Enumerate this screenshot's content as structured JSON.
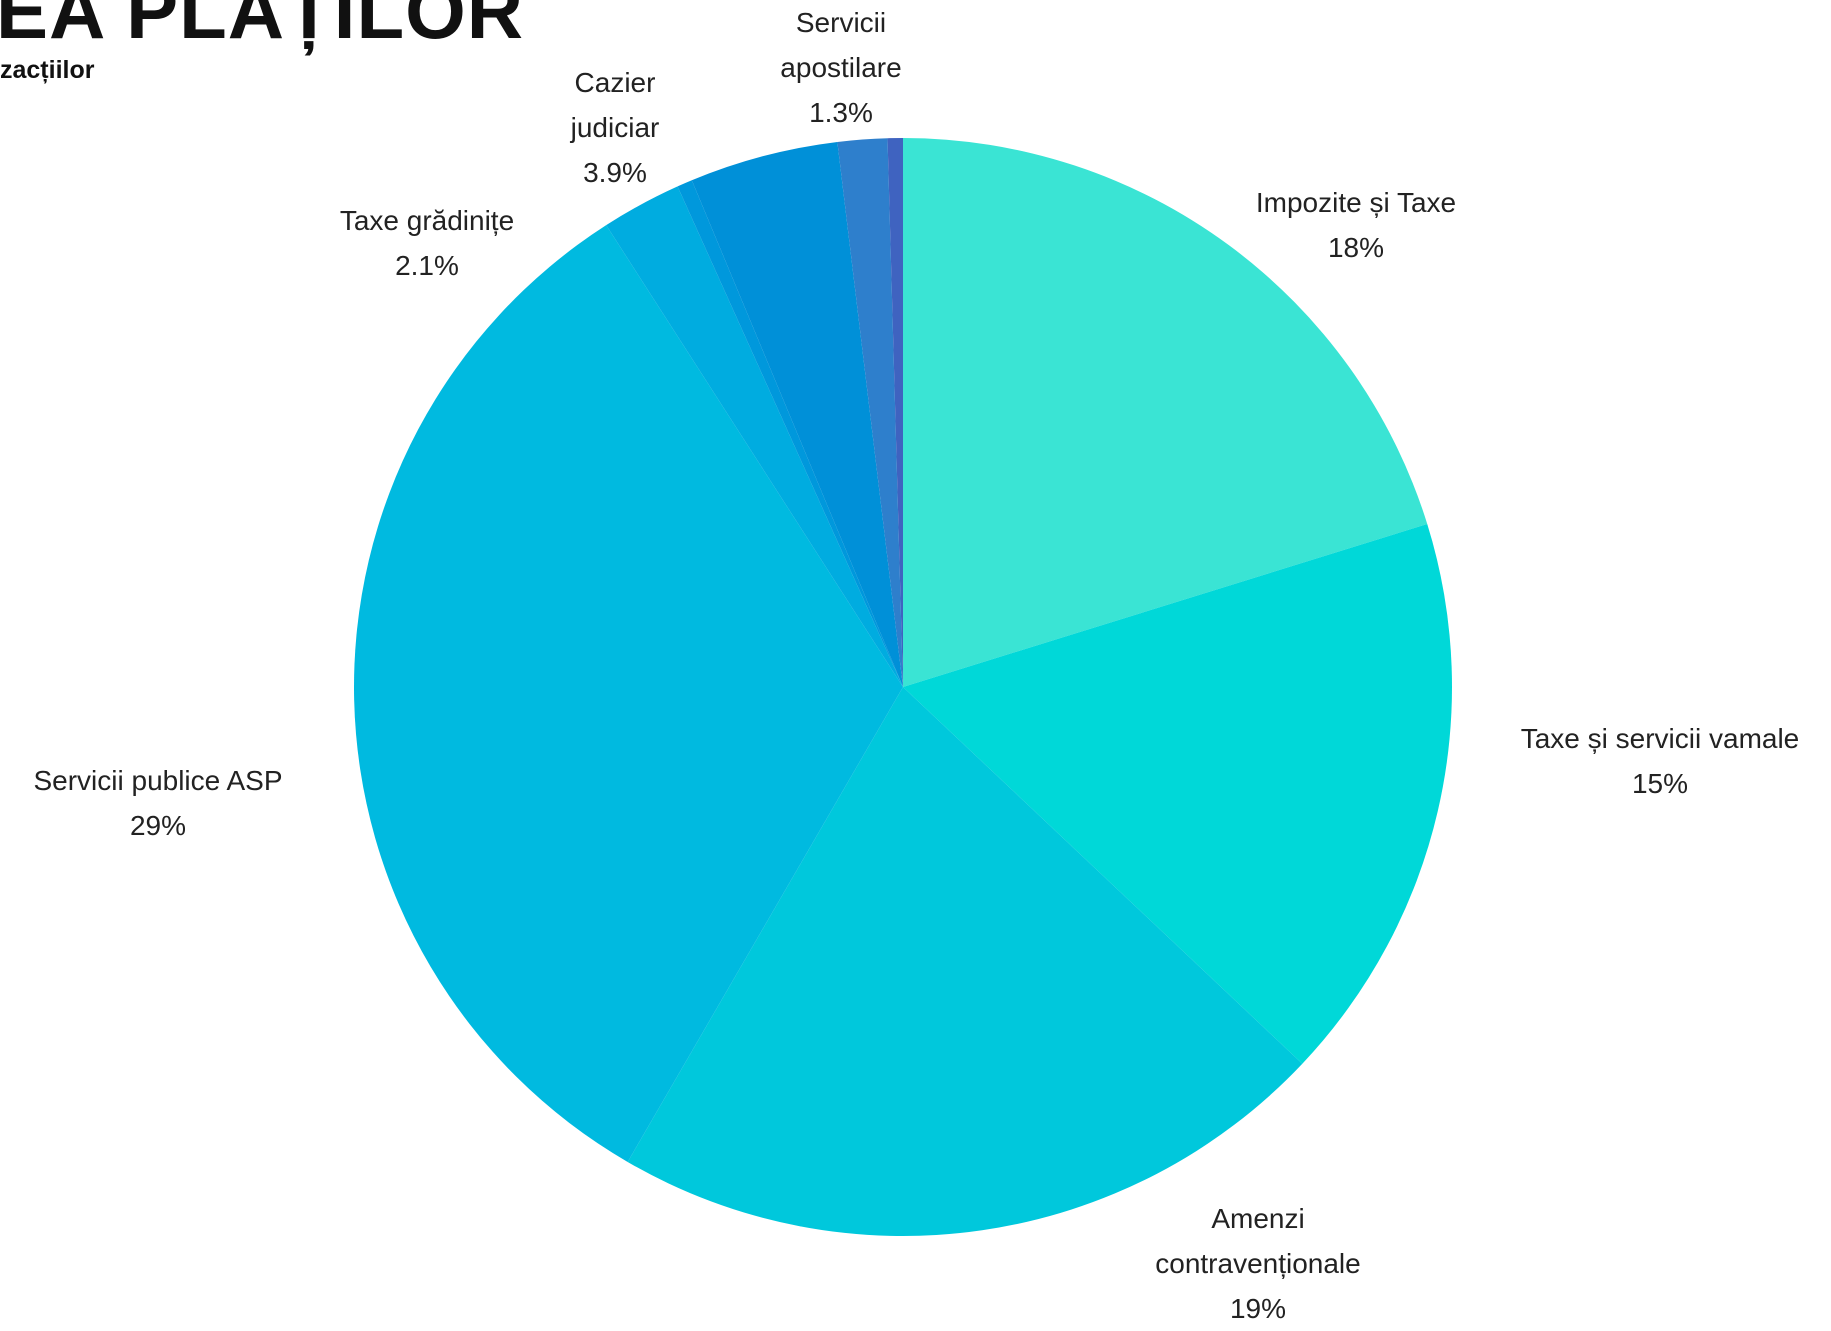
{
  "chart_data": {
    "type": "pie",
    "title": "EA PLAȚILOR",
    "subtitle": "zacțiilor",
    "categories": [
      "Impozite și Taxe",
      "Taxe și servicii vamale",
      "Amenzi contravenționale",
      "Servicii publice ASP",
      "Taxe grădinițe",
      null,
      "Cazier judiciar",
      "Servicii apostilare",
      null
    ],
    "values": [
      18,
      15,
      19,
      29,
      2.1,
      0.4,
      3.9,
      1.3,
      0.4
    ],
    "value_labels": [
      "18%",
      "15%",
      "19%",
      "29%",
      "2.1%",
      null,
      "3.9%",
      "1.3%",
      null
    ],
    "colors": [
      "#3ae4d4",
      "#00d8d8",
      "#00c8dc",
      "#00bae0",
      "#00ace0",
      "#0098dc",
      "#0090d8",
      "#2e7fcc",
      "#3f63c0"
    ]
  }
}
